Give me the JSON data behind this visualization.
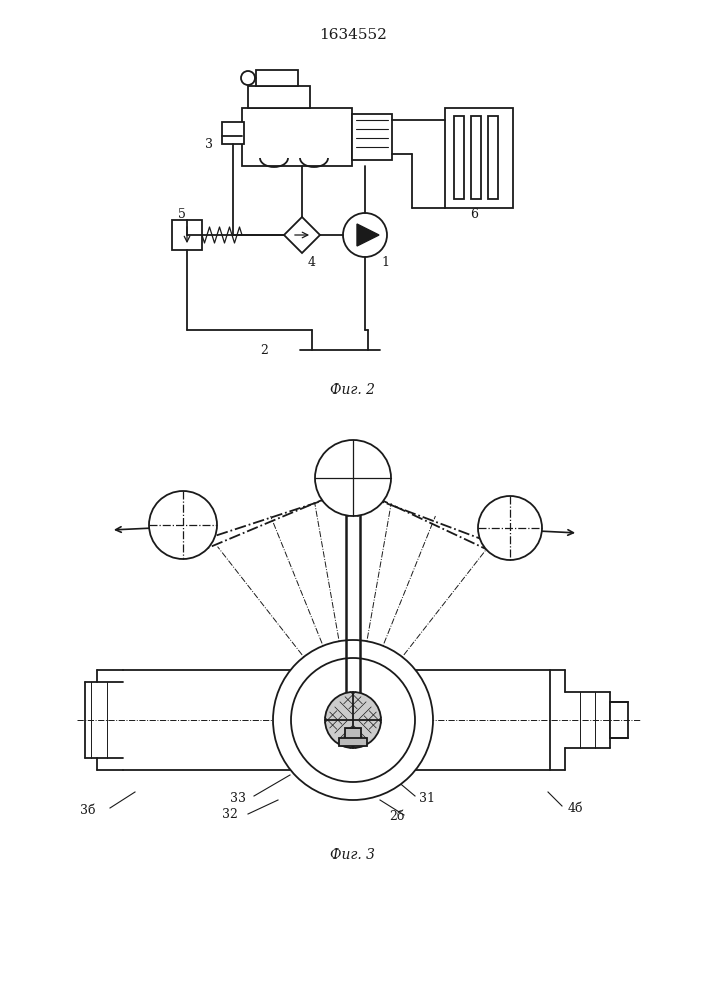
{
  "title": "1634552",
  "fig2_label": "Фиг. 2",
  "fig3_label": "Фиг. 3",
  "bg_color": "#ffffff",
  "lc": "#1a1a1a",
  "lw": 1.3
}
